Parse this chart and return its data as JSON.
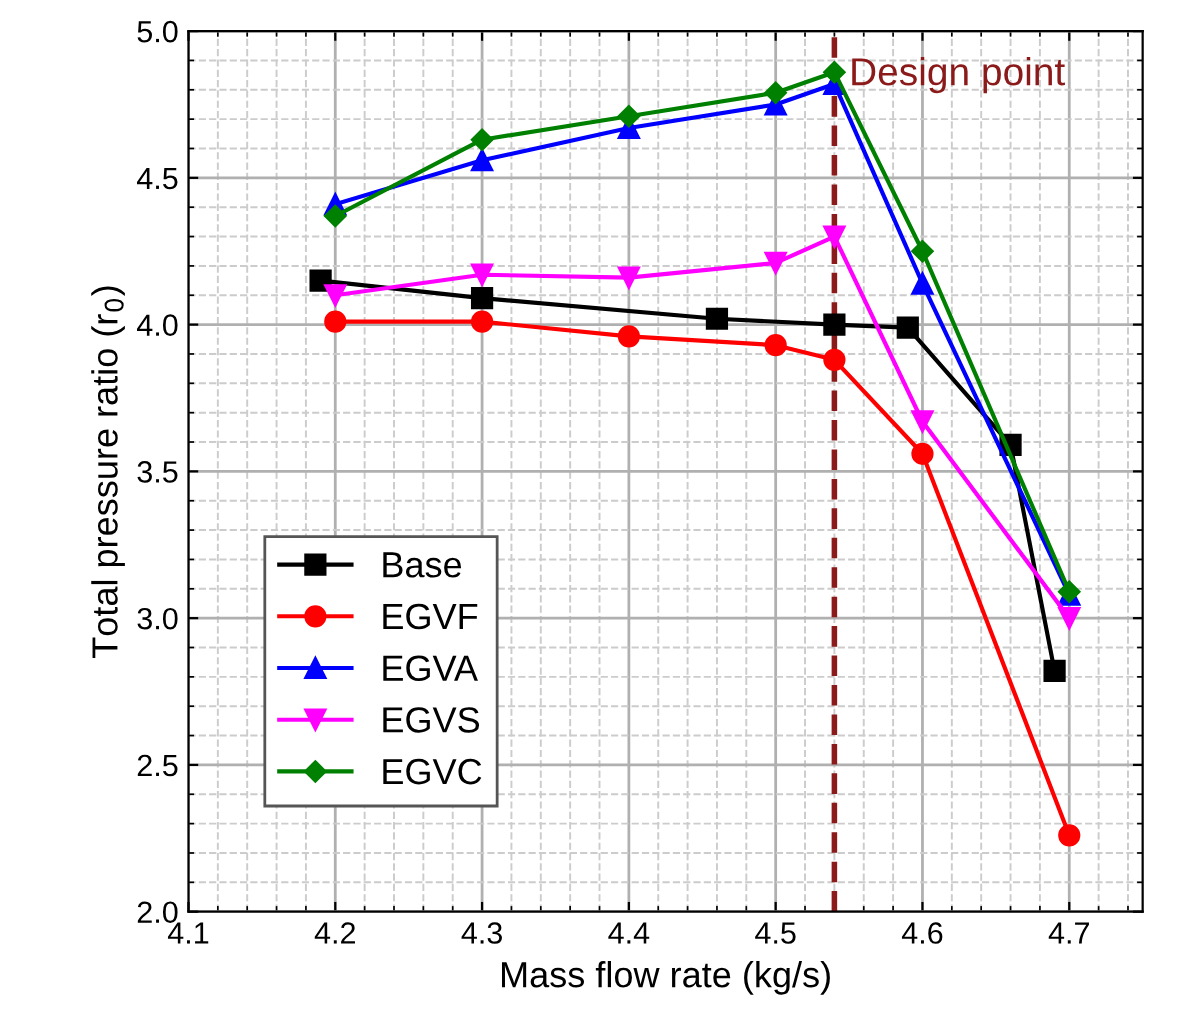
{
  "chart_data": {
    "type": "line",
    "xlabel": "Mass flow rate (kg/s)",
    "ylabel": "Total pressure ratio (r$_{0}$)",
    "xlim": [
      4.1,
      4.75
    ],
    "ylim": [
      2.0,
      5.0
    ],
    "xticks": [
      4.1,
      4.2,
      4.3,
      4.4,
      4.5,
      4.6,
      4.7
    ],
    "yticks": [
      {
        "value": 2,
        "label": "2.0"
      },
      2.5,
      {
        "value": 3,
        "label": "3.0"
      },
      3.5,
      {
        "value": 4,
        "label": "4.0"
      },
      4.5,
      {
        "value": 5,
        "label": "5.0"
      }
    ],
    "grid": true,
    "legend": "bottom left",
    "line_style": "solid",
    "series": [
      {
        "name": "Base",
        "color": "#000000",
        "marker": "square",
        "x": [
          4.19,
          4.3,
          4.46,
          4.54,
          4.59,
          4.66,
          4.69
        ],
        "values": [
          4.15,
          4.09,
          4.02,
          4.0,
          3.99,
          3.59,
          2.82
        ]
      },
      {
        "name": "EGVF",
        "color": "#ff0000",
        "marker": "circle",
        "x": [
          4.2,
          4.3,
          4.4,
          4.5,
          4.54,
          4.6,
          4.7
        ],
        "values": [
          4.01,
          4.01,
          3.96,
          3.93,
          3.88,
          3.56,
          2.26
        ]
      },
      {
        "name": "EGVA",
        "color": "#0000ff",
        "marker": "triangle",
        "x": [
          4.2,
          4.3,
          4.4,
          4.5,
          4.54,
          4.6,
          4.7
        ],
        "values": [
          4.41,
          4.56,
          4.67,
          4.75,
          4.82,
          4.14,
          3.08
        ]
      },
      {
        "name": "EGVS",
        "color": "#ff00ff",
        "marker": "triangle_down",
        "x": [
          4.2,
          4.3,
          4.4,
          4.5,
          4.54,
          4.6,
          4.7
        ],
        "values": [
          4.1,
          4.17,
          4.16,
          4.21,
          4.3,
          3.67,
          3.0
        ]
      },
      {
        "name": "EGVC",
        "color": "#008000",
        "marker": "diamond",
        "x": [
          4.2,
          4.3,
          4.4,
          4.5,
          4.54,
          4.6,
          4.7
        ],
        "values": [
          4.37,
          4.63,
          4.71,
          4.79,
          4.86,
          4.25,
          3.09
        ]
      }
    ],
    "ref_lines": [
      {
        "axis": "x",
        "value": 4.54,
        "label": "Design point",
        "color": "#8b1a1a",
        "line_style": "dashed"
      }
    ]
  }
}
